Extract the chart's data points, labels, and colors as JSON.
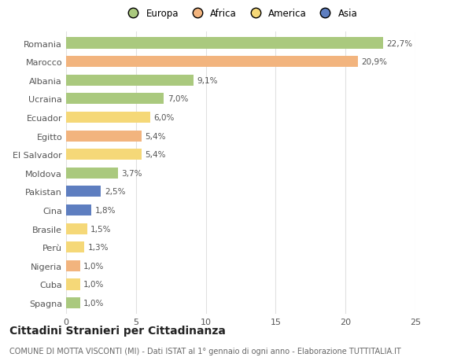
{
  "categories": [
    "Romania",
    "Marocco",
    "Albania",
    "Ucraina",
    "Ecuador",
    "Egitto",
    "El Salvador",
    "Moldova",
    "Pakistan",
    "Cina",
    "Brasile",
    "Perù",
    "Nigeria",
    "Cuba",
    "Spagna"
  ],
  "values": [
    22.7,
    20.9,
    9.1,
    7.0,
    6.0,
    5.4,
    5.4,
    3.7,
    2.5,
    1.8,
    1.5,
    1.3,
    1.0,
    1.0,
    1.0
  ],
  "labels": [
    "22,7%",
    "20,9%",
    "9,1%",
    "7,0%",
    "6,0%",
    "5,4%",
    "5,4%",
    "3,7%",
    "2,5%",
    "1,8%",
    "1,5%",
    "1,3%",
    "1,0%",
    "1,0%",
    "1,0%"
  ],
  "colors": [
    "#aac97e",
    "#f2b47e",
    "#aac97e",
    "#aac97e",
    "#f5d878",
    "#f2b47e",
    "#f5d878",
    "#aac97e",
    "#5e7ec0",
    "#5e7ec0",
    "#f5d878",
    "#f5d878",
    "#f2b47e",
    "#f5d878",
    "#aac97e"
  ],
  "legend_labels": [
    "Europa",
    "Africa",
    "America",
    "Asia"
  ],
  "legend_colors": [
    "#aac97e",
    "#f2b47e",
    "#f5d878",
    "#5e7ec0"
  ],
  "title": "Cittadini Stranieri per Cittadinanza",
  "subtitle": "COMUNE DI MOTTA VISCONTI (MI) - Dati ISTAT al 1° gennaio di ogni anno - Elaborazione TUTTITALIA.IT",
  "xlim": [
    0,
    25
  ],
  "xticks": [
    0,
    5,
    10,
    15,
    20,
    25
  ],
  "background_color": "#ffffff",
  "grid_color": "#e0e0e0",
  "bar_height": 0.6,
  "title_fontsize": 10,
  "subtitle_fontsize": 7,
  "label_fontsize": 7.5,
  "tick_fontsize": 8,
  "legend_fontsize": 8.5
}
